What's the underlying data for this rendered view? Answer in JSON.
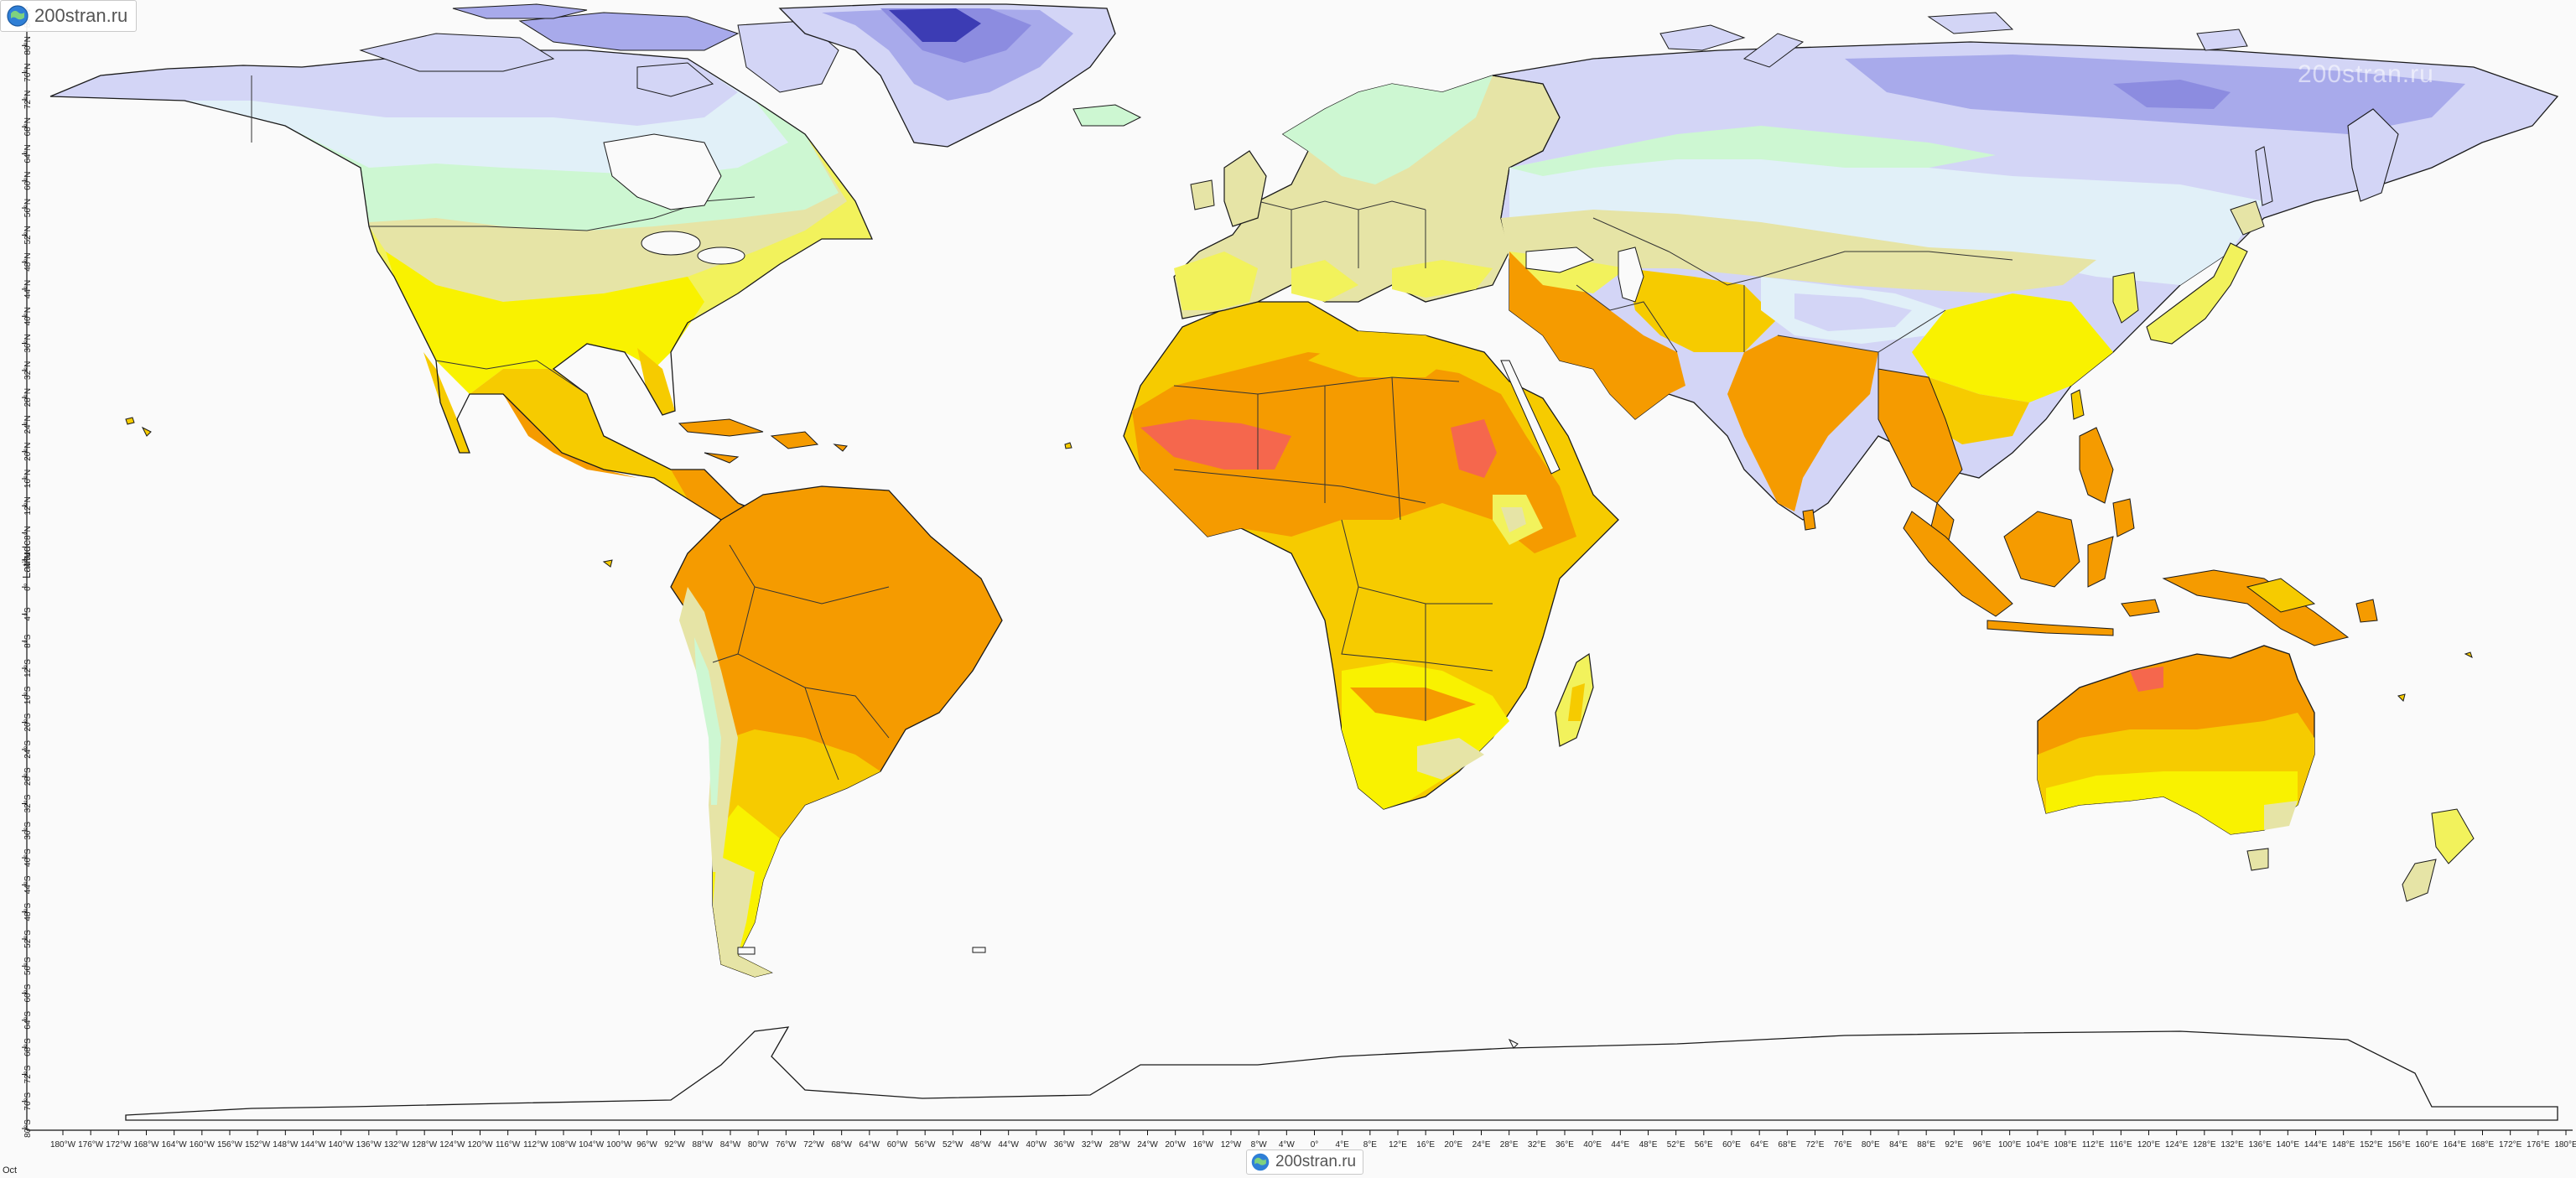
{
  "branding": {
    "site": "200stran.ru"
  },
  "map": {
    "axis_label_lat": "Latitude",
    "period": "Oct",
    "lon_ticks": [
      "180°W",
      "176°W",
      "172°W",
      "168°W",
      "164°W",
      "160°W",
      "156°W",
      "152°W",
      "148°W",
      "144°W",
      "140°W",
      "136°W",
      "132°W",
      "128°W",
      "124°W",
      "120°W",
      "116°W",
      "112°W",
      "108°W",
      "104°W",
      "100°W",
      "96°W",
      "92°W",
      "88°W",
      "84°W",
      "80°W",
      "76°W",
      "72°W",
      "68°W",
      "64°W",
      "60°W",
      "56°W",
      "52°W",
      "48°W",
      "44°W",
      "40°W",
      "36°W",
      "32°W",
      "28°W",
      "24°W",
      "20°W",
      "16°W",
      "12°W",
      "8°W",
      "4°W",
      "0°",
      "4°E",
      "8°E",
      "12°E",
      "16°E",
      "20°E",
      "24°E",
      "28°E",
      "32°E",
      "36°E",
      "40°E",
      "44°E",
      "48°E",
      "52°E",
      "56°E",
      "60°E",
      "64°E",
      "68°E",
      "72°E",
      "76°E",
      "80°E",
      "84°E",
      "88°E",
      "92°E",
      "96°E",
      "100°E",
      "104°E",
      "108°E",
      "112°E",
      "116°E",
      "120°E",
      "124°E",
      "128°E",
      "132°E",
      "136°E",
      "140°E",
      "144°E",
      "148°E",
      "152°E",
      "156°E",
      "160°E",
      "164°E",
      "168°E",
      "172°E",
      "176°E",
      "180°E"
    ],
    "lat_ticks": [
      "84°N",
      "80°N",
      "76°N",
      "72°N",
      "68°N",
      "64°N",
      "60°N",
      "56°N",
      "52°N",
      "48°N",
      "44°N",
      "40°N",
      "36°N",
      "32°N",
      "28°N",
      "24°N",
      "20°N",
      "16°N",
      "12°N",
      "8°N",
      "4°N",
      "0°",
      "4°S",
      "8°S",
      "12°S",
      "16°S",
      "20°S",
      "24°S",
      "28°S",
      "32°S",
      "36°S",
      "40°S",
      "44°S",
      "48°S",
      "52°S",
      "56°S",
      "60°S",
      "64°S",
      "68°S",
      "72°S",
      "76°S",
      "80°S"
    ],
    "palette": {
      "ice_dark": "#3c3cb4",
      "ice": "#8c8ce0",
      "very_cold": "#a8aaeb",
      "cold": "#d3d5f6",
      "cool": "#e1f0f8",
      "mild": "#cdf7d2",
      "temperate": "#e6e4a6",
      "warm": "#f2f25c",
      "hot_light": "#f9f200",
      "hot": "#f6cb00",
      "very_hot": "#f59b00",
      "extreme": "#f5674d",
      "ocean": "#fafafa",
      "border": "#1a1a1a"
    }
  }
}
